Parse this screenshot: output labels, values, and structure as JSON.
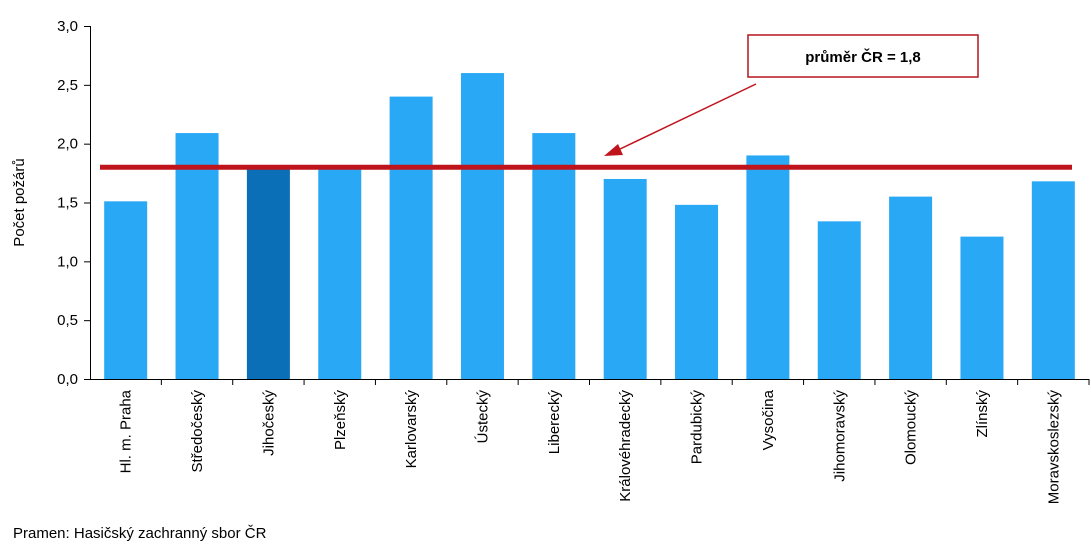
{
  "chart_data": {
    "type": "bar",
    "categories": [
      "Hl. m. Praha",
      "Středočeský",
      "Jihočeský",
      "Plzeňský",
      "Karlovarský",
      "Ústecký",
      "Liberecký",
      "Královéhradecký",
      "Pardubický",
      "Vysočina",
      "Jihomoravský",
      "Olomoucký",
      "Zlínský",
      "Moravskoslezský"
    ],
    "values": [
      1.51,
      2.09,
      1.8,
      1.8,
      2.4,
      2.6,
      2.09,
      1.7,
      1.48,
      1.9,
      1.34,
      1.55,
      1.21,
      1.68
    ],
    "highlight_index": 2,
    "ylabel": "Počet požárů",
    "ylim": [
      0,
      3
    ],
    "yticks": [
      "0,0",
      "0,5",
      "1,0",
      "1,5",
      "2,0",
      "2,5",
      "3,0"
    ],
    "average": {
      "value": 1.8,
      "label": "průměr ČR = 1,8"
    },
    "grid": false,
    "colors": {
      "bar": "#29a8f6",
      "highlight": "#0b6fb7",
      "average_line": "#c0141c",
      "axis": "#000000"
    }
  },
  "source": "Pramen:  Hasičský zachranný sbor ČR"
}
